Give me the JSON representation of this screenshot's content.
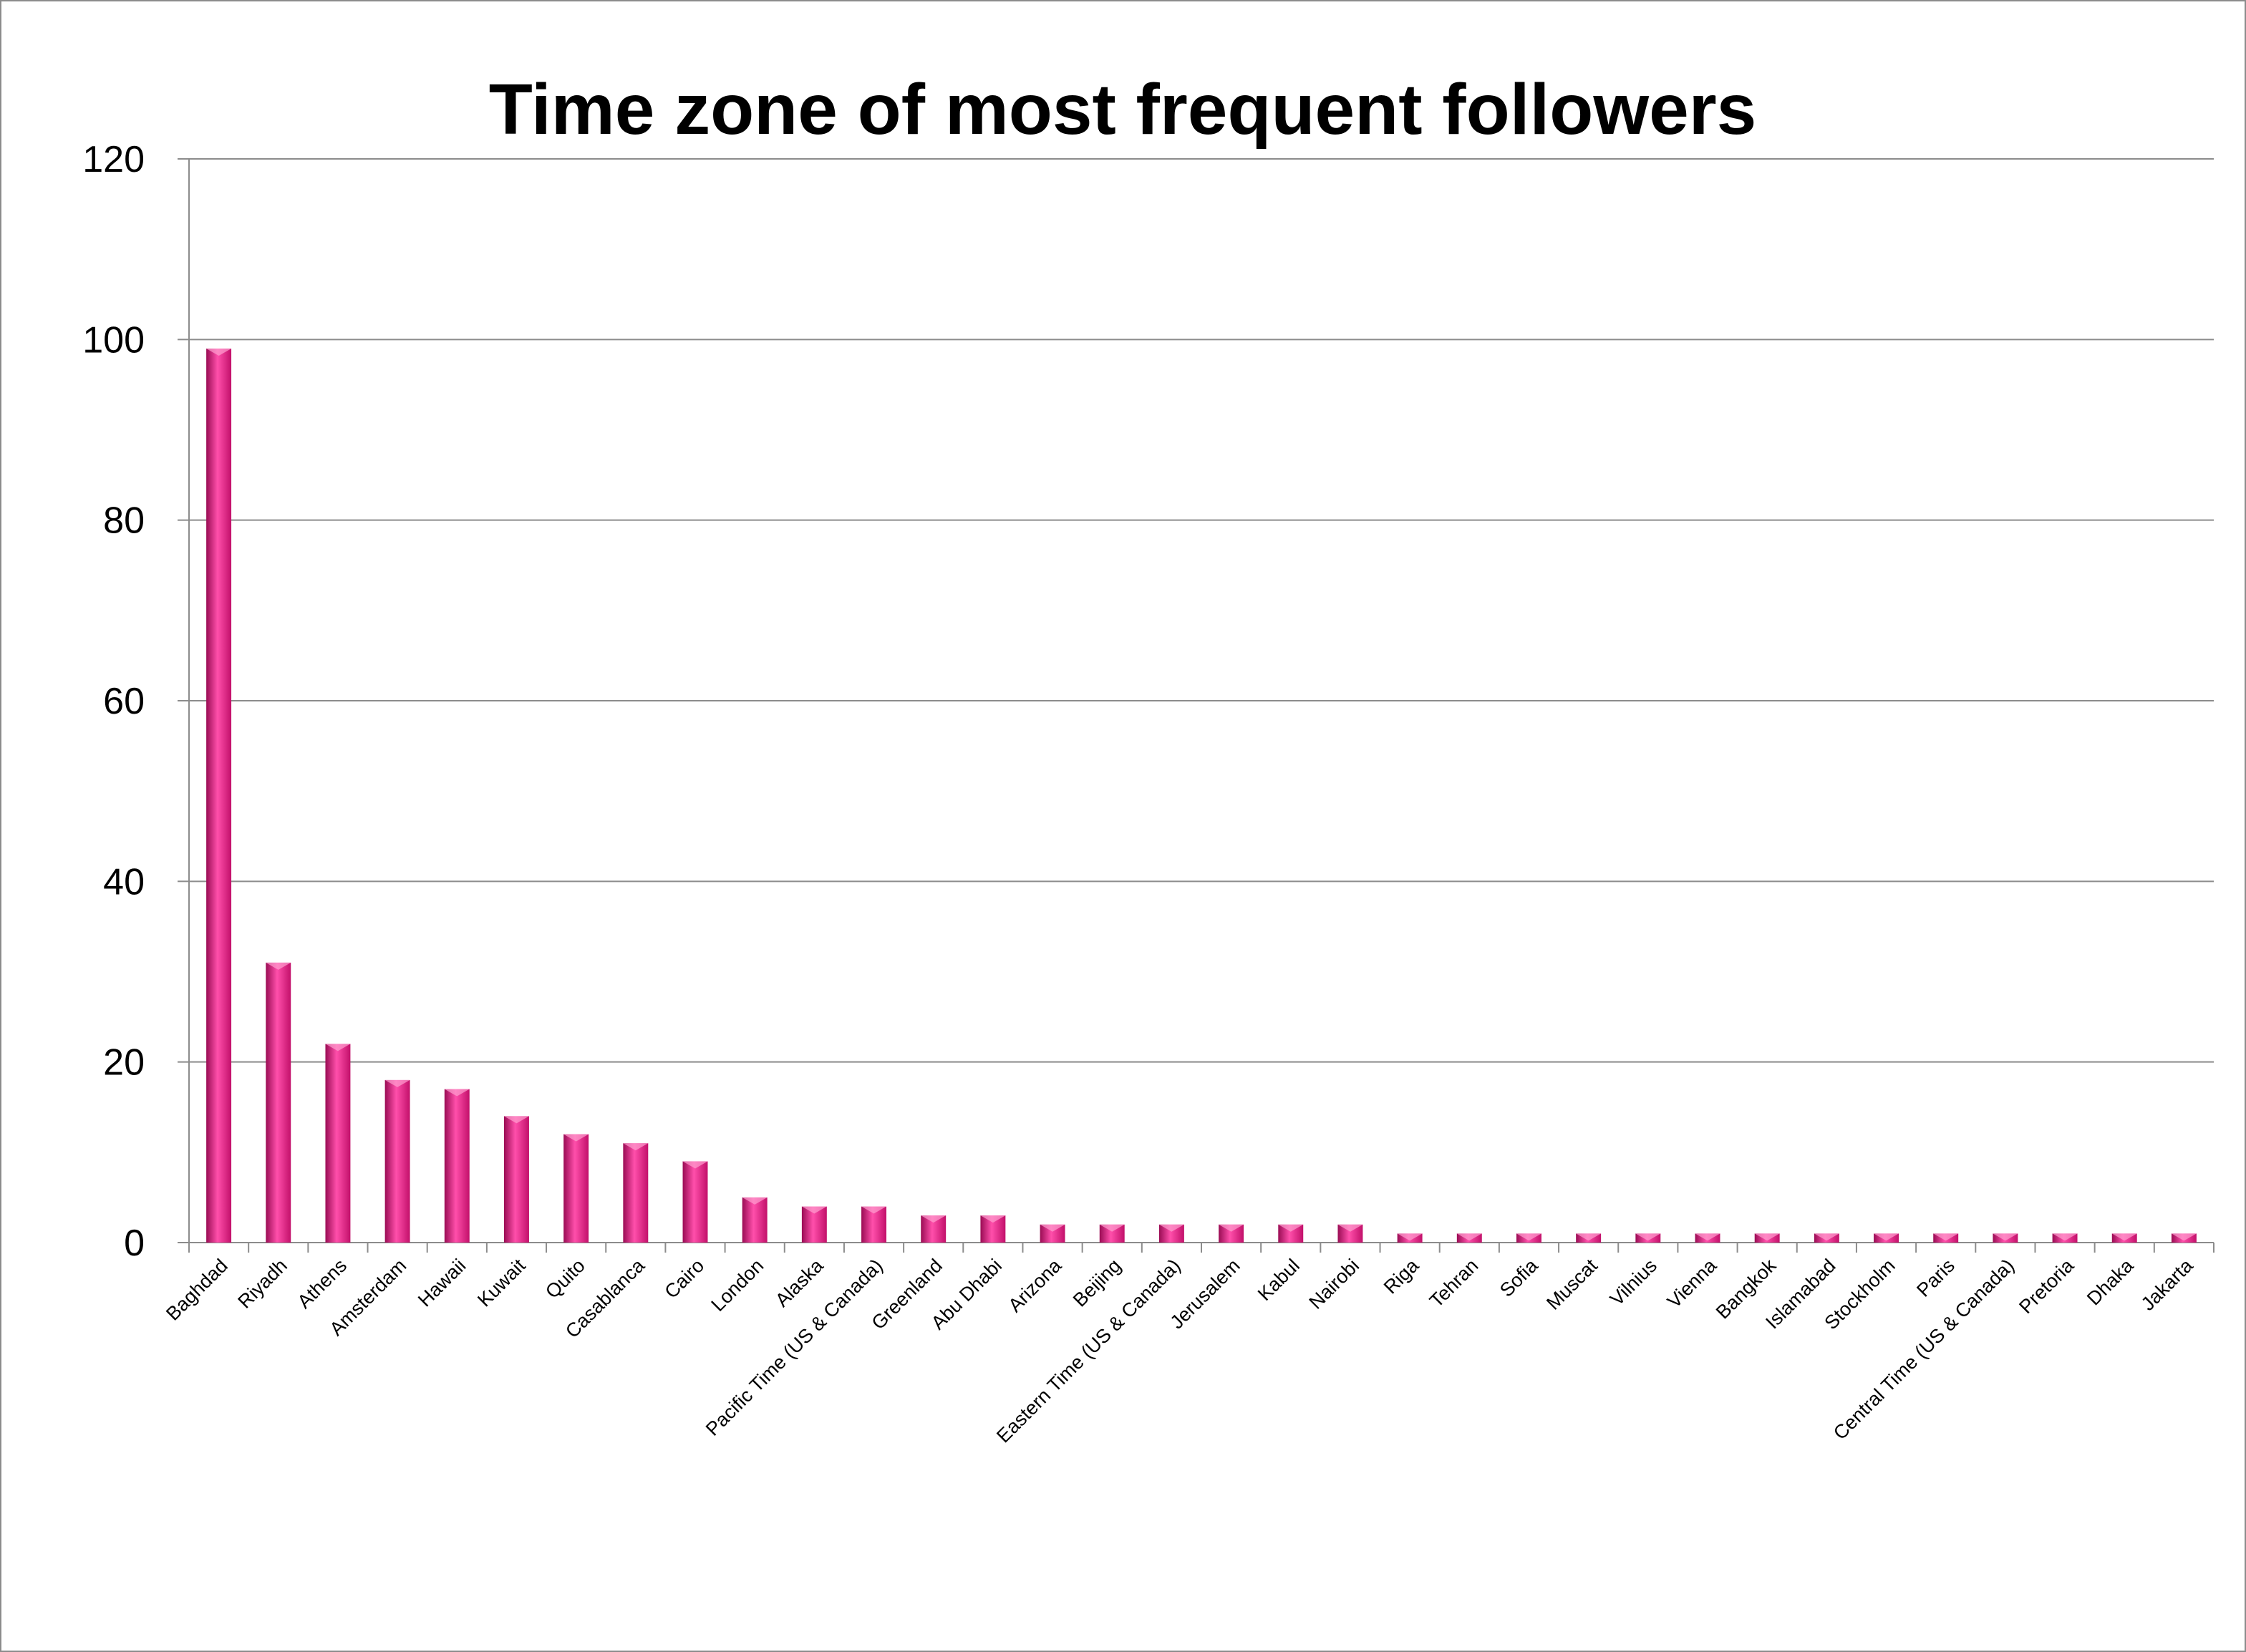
{
  "chart_data": {
    "type": "bar",
    "title": "Time zone of most frequent followers",
    "xlabel": "",
    "ylabel": "",
    "ylim": [
      0,
      120
    ],
    "yticks": [
      0,
      20,
      40,
      60,
      80,
      100,
      120
    ],
    "grid": true,
    "legend": "none",
    "bar_color": "#e0157c",
    "categories": [
      "Baghdad",
      "Riyadh",
      "Athens",
      "Amsterdam",
      "Hawaii",
      "Kuwait",
      "Quito",
      "Casablanca",
      "Cairo",
      "London",
      "Alaska",
      "Pacific Time (US & Canada)",
      "Greenland",
      "Abu Dhabi",
      "Arizona",
      "Beijing",
      "Eastern Time (US & Canada)",
      "Jerusalem",
      "Kabul",
      "Nairobi",
      "Riga",
      "Tehran",
      "Sofia",
      "Muscat",
      "Vilnius",
      "Vienna",
      "Bangkok",
      "Islamabad",
      "Stockholm",
      "Paris",
      "Central Time (US & Canada)",
      "Pretoria",
      "Dhaka",
      "Jakarta"
    ],
    "values": [
      99,
      31,
      22,
      18,
      17,
      14,
      12,
      11,
      9,
      5,
      4,
      4,
      3,
      3,
      2,
      2,
      2,
      2,
      2,
      2,
      1,
      1,
      1,
      1,
      1,
      1,
      1,
      1,
      1,
      1,
      1,
      1,
      1,
      1
    ]
  }
}
